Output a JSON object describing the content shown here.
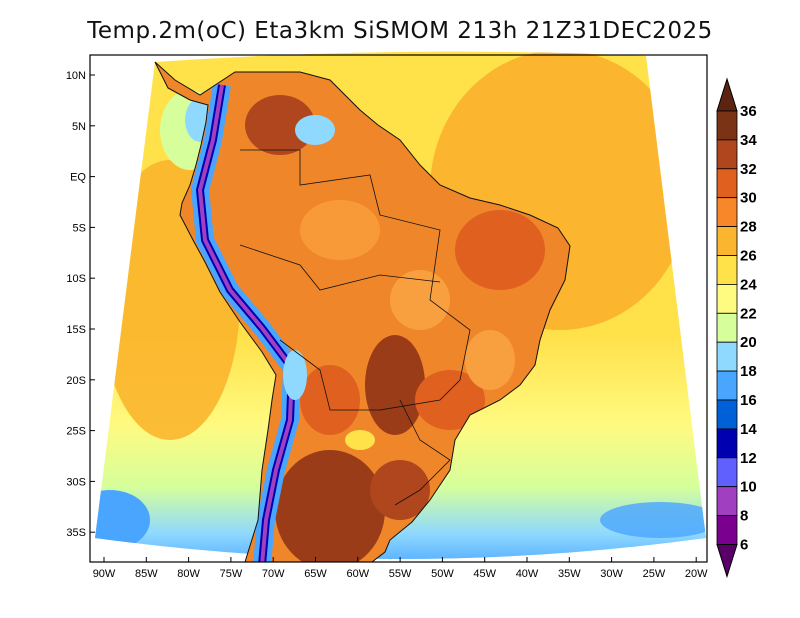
{
  "title": "Temp.2m(oC) Eta3km SiSMOM 213h 21Z31DEC2025",
  "axes": {
    "lat_labels": [
      "10N",
      "5N",
      "EQ",
      "5S",
      "10S",
      "15S",
      "20S",
      "25S",
      "30S",
      "35S"
    ],
    "lon_labels": [
      "90W",
      "85W",
      "80W",
      "75W",
      "70W",
      "65W",
      "60W",
      "55W",
      "50W",
      "45W",
      "40W",
      "35W",
      "30W",
      "25W",
      "20W"
    ]
  },
  "colorbar": {
    "levels": [
      "36",
      "34",
      "32",
      "30",
      "28",
      "26",
      "24",
      "22",
      "20",
      "18",
      "16",
      "14",
      "12",
      "10",
      "8",
      "6"
    ],
    "colors": [
      "#5c2410",
      "#7a3415",
      "#b0461e",
      "#e06020",
      "#f8872a",
      "#fbb52e",
      "#ffe14a",
      "#fffa80",
      "#d6ff9b",
      "#8fd9ff",
      "#4aa5ff",
      "#0060d8",
      "#0000b0",
      "#6060ff",
      "#a040c0",
      "#7a0090",
      "#580068"
    ]
  }
}
